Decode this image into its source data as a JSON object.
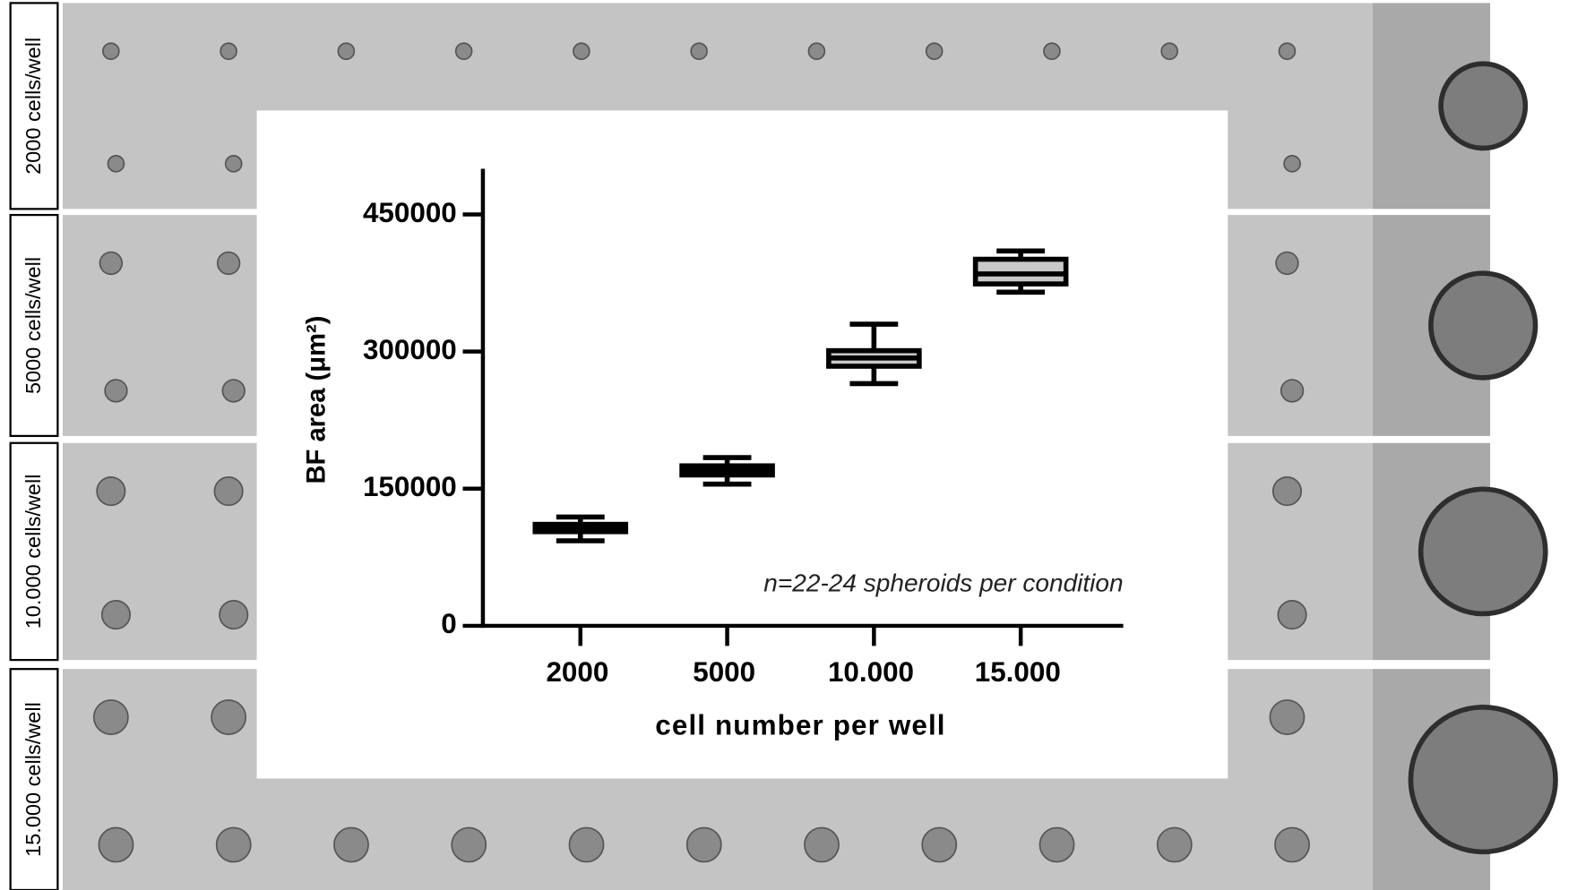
{
  "chart_data": {
    "type": "box",
    "row_labels": [
      "2000 cells/well",
      "5000 cells/well",
      "10.000 cells/well",
      "15.000 cells/well"
    ],
    "y_label": "BF area (μm²)",
    "x_label": "cell number per well",
    "annotation": "n=22-24 spheroids per condition",
    "categories": [
      "2000",
      "5000",
      "10.000",
      "15.000"
    ],
    "boxes": [
      {
        "whisker_low": 93000,
        "q1": 103000,
        "median": 107000,
        "q3": 111000,
        "whisker_high": 119000
      },
      {
        "whisker_low": 155000,
        "q1": 165000,
        "median": 170000,
        "q3": 175000,
        "whisker_high": 184000
      },
      {
        "whisker_low": 265000,
        "q1": 284000,
        "median": 293000,
        "q3": 301000,
        "whisker_high": 330000
      },
      {
        "whisker_low": 365000,
        "q1": 374000,
        "median": 385000,
        "q3": 401000,
        "whisker_high": 410000
      }
    ],
    "box_color": "#c8c8c8",
    "line_color": "#000000",
    "ylim": [
      0,
      500000
    ],
    "yticks": [
      0,
      150000,
      300000,
      450000
    ]
  }
}
